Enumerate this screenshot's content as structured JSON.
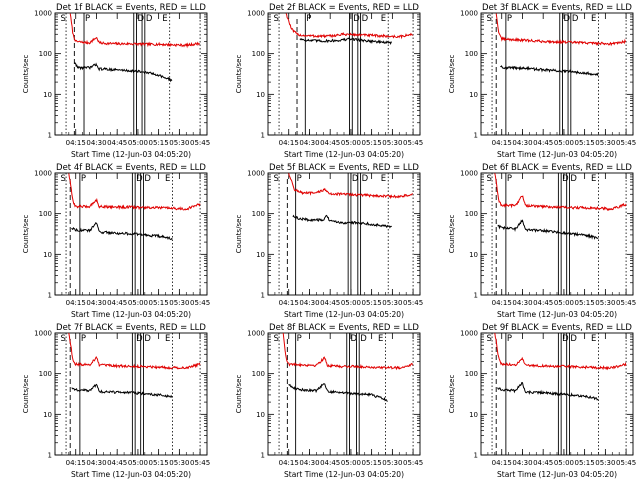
{
  "page": {
    "background": "#ffffff"
  },
  "colors": {
    "events": "#000000",
    "lld": "#e00000",
    "axes": "#000000"
  },
  "chart_data": {
    "type": "line",
    "layout": "3x3 grid",
    "shared": {
      "ylabel": "Counts/sec",
      "xlabel": "Start Time (12-Jun-03 04:05:20)",
      "yscale": "log",
      "ylim": [
        1,
        1000
      ],
      "ytick_labels": [
        "1",
        "10",
        "100",
        "1000"
      ],
      "xlim_minutes": [
        -5,
        105
      ],
      "xtick_minutes": [
        10,
        25,
        40,
        55,
        70,
        85,
        100
      ],
      "xtick_labels": [
        "04:15",
        "04:30",
        "04:45",
        "05:00",
        "05:15",
        "05:30",
        "05:45"
      ],
      "legend": "BLACK = Events, RED = LLD",
      "marker_labels": [
        "S",
        "P",
        "D",
        "E"
      ]
    },
    "panels": [
      {
        "title": "Det 1f BLACK = Events, RED = LLD",
        "markers": {
          "S_min": 3,
          "dashed_min": 9,
          "P_min": 16,
          "D_min": [
            52,
            54,
            58,
            60
          ],
          "E_min": 78
        },
        "series": [
          {
            "name": "LLD",
            "color": "#e00000",
            "start": 6,
            "end": 100,
            "x": [
              6,
              8,
              10,
              15,
              20,
              25,
              27,
              30,
              40,
              50,
              60,
              70,
              80,
              90,
              100
            ],
            "y": [
              1000,
              300,
              200,
              190,
              185,
              250,
              185,
              180,
              175,
              175,
              170,
              170,
              165,
              160,
              180
            ]
          },
          {
            "name": "Events",
            "color": "#000000",
            "start": 9,
            "end": 80,
            "x": [
              9,
              12,
              20,
              25,
              27,
              30,
              40,
              50,
              60,
              70,
              75,
              80
            ],
            "y": [
              60,
              45,
              45,
              55,
              42,
              42,
              40,
              38,
              35,
              30,
              25,
              22
            ]
          }
        ]
      },
      {
        "title": "Det 2f BLACK = Events, RED = LLD",
        "markers": {
          "S_min": 3,
          "dashed_min": 16,
          "P_min": 22,
          "D_min": [
            54,
            56,
            60,
            62
          ],
          "E_min": 82
        },
        "series": [
          {
            "name": "LLD",
            "color": "#e00000",
            "start": 8,
            "end": 100,
            "x": [
              8,
              12,
              16,
              20,
              30,
              40,
              50,
              60,
              70,
              80,
              90,
              100
            ],
            "y": [
              1000,
              400,
              300,
              280,
              270,
              270,
              300,
              290,
              280,
              270,
              260,
              300
            ]
          },
          {
            "name": "Events",
            "color": "#000000",
            "start": 18,
            "end": 85,
            "x": [
              18,
              25,
              35,
              45,
              55,
              60,
              65,
              75,
              85
            ],
            "y": [
              230,
              210,
              205,
              210,
              230,
              220,
              210,
              195,
              185
            ]
          }
        ]
      },
      {
        "title": "Det 3f BLACK = Events, RED = LLD",
        "markers": {
          "S_min": 3,
          "dashed_min": 6,
          "P_min": 13,
          "D_min": [
            52,
            54,
            58,
            60
          ],
          "E_min": 80
        },
        "series": [
          {
            "name": "LLD",
            "color": "#e00000",
            "start": 6,
            "end": 100,
            "x": [
              6,
              8,
              10,
              20,
              30,
              40,
              50,
              60,
              70,
              80,
              90,
              100
            ],
            "y": [
              1000,
              300,
              230,
              220,
              210,
              200,
              195,
              190,
              185,
              180,
              175,
              200
            ]
          },
          {
            "name": "Events",
            "color": "#000000",
            "start": 9,
            "end": 80,
            "x": [
              9,
              12,
              20,
              30,
              40,
              50,
              60,
              70,
              80
            ],
            "y": [
              50,
              45,
              45,
              43,
              40,
              38,
              36,
              34,
              30
            ]
          }
        ]
      },
      {
        "title": "Det 4f BLACK = Events, RED = LLD",
        "markers": {
          "S_min": 3,
          "dashed_min": 6,
          "P_min": 13,
          "D_min": [
            51,
            53,
            57,
            59
          ],
          "E_min": 80
        },
        "series": [
          {
            "name": "LLD",
            "color": "#e00000",
            "start": 5,
            "end": 100,
            "x": [
              5,
              8,
              10,
              20,
              25,
              27,
              30,
              40,
              50,
              60,
              70,
              80,
              90,
              100
            ],
            "y": [
              1000,
              200,
              150,
              150,
              220,
              150,
              150,
              145,
              145,
              140,
              140,
              135,
              130,
              170
            ]
          },
          {
            "name": "Events",
            "color": "#000000",
            "start": 7,
            "end": 80,
            "x": [
              7,
              10,
              20,
              25,
              27,
              30,
              40,
              50,
              60,
              70,
              80
            ],
            "y": [
              45,
              40,
              38,
              60,
              35,
              35,
              33,
              32,
              30,
              28,
              24
            ]
          }
        ]
      },
      {
        "title": "Det 5f BLACK = Events, RED = LLD",
        "markers": {
          "S_min": 3,
          "dashed_min": 9,
          "P_min": 15,
          "D_min": [
            53,
            55,
            60,
            62
          ],
          "E_min": 82
        },
        "series": [
          {
            "name": "LLD",
            "color": "#e00000",
            "start": 10,
            "end": 100,
            "x": [
              10,
              14,
              20,
              30,
              36,
              38,
              40,
              50,
              60,
              70,
              80,
              90,
              100
            ],
            "y": [
              1000,
              400,
              320,
              320,
              400,
              330,
              310,
              300,
              290,
              280,
              270,
              260,
              300
            ]
          },
          {
            "name": "Events",
            "color": "#000000",
            "start": 13,
            "end": 85,
            "x": [
              13,
              18,
              25,
              35,
              37,
              40,
              50,
              60,
              70,
              80,
              85
            ],
            "y": [
              85,
              75,
              70,
              70,
              90,
              65,
              60,
              60,
              55,
              50,
              45
            ]
          }
        ]
      },
      {
        "title": "Det 6f BLACK = Events, RED = LLD",
        "markers": {
          "S_min": 3,
          "dashed_min": 6,
          "P_min": 13,
          "D_min": [
            51,
            53,
            57,
            59
          ],
          "E_min": 80
        },
        "series": [
          {
            "name": "LLD",
            "color": "#e00000",
            "start": 5,
            "end": 100,
            "x": [
              5,
              8,
              10,
              20,
              25,
              27,
              30,
              40,
              50,
              60,
              70,
              80,
              90,
              100
            ],
            "y": [
              1000,
              200,
              160,
              160,
              280,
              160,
              155,
              150,
              145,
              140,
              140,
              135,
              130,
              170
            ]
          },
          {
            "name": "Events",
            "color": "#000000",
            "start": 7,
            "end": 80,
            "x": [
              7,
              10,
              20,
              25,
              27,
              30,
              40,
              50,
              60,
              70,
              80
            ],
            "y": [
              50,
              45,
              42,
              70,
              40,
              40,
              38,
              35,
              32,
              30,
              25
            ]
          }
        ]
      },
      {
        "title": "Det 7f BLACK = Events, RED = LLD",
        "markers": {
          "S_min": 3,
          "dashed_min": 6,
          "P_min": 13,
          "D_min": [
            51,
            53,
            57,
            59
          ],
          "E_min": 80
        },
        "series": [
          {
            "name": "LLD",
            "color": "#e00000",
            "start": 5,
            "end": 100,
            "x": [
              5,
              8,
              10,
              20,
              25,
              27,
              30,
              40,
              50,
              60,
              70,
              80,
              90,
              100
            ],
            "y": [
              1000,
              220,
              170,
              165,
              250,
              165,
              160,
              155,
              150,
              150,
              145,
              140,
              140,
              170
            ]
          },
          {
            "name": "Events",
            "color": "#000000",
            "start": 7,
            "end": 80,
            "x": [
              7,
              10,
              20,
              25,
              27,
              30,
              40,
              50,
              60,
              70,
              80
            ],
            "y": [
              45,
              40,
              38,
              55,
              36,
              36,
              35,
              34,
              32,
              30,
              27
            ]
          }
        ]
      },
      {
        "title": "Det 8f BLACK = Events, RED = LLD",
        "markers": {
          "S_min": 3,
          "dashed_min": 9,
          "P_min": 15,
          "D_min": [
            52,
            54,
            59,
            61
          ],
          "E_min": 80
        },
        "series": [
          {
            "name": "LLD",
            "color": "#e00000",
            "start": 6,
            "end": 100,
            "x": [
              6,
              8,
              10,
              20,
              30,
              36,
              38,
              40,
              50,
              60,
              70,
              80,
              90,
              100
            ],
            "y": [
              1000,
              250,
              170,
              165,
              160,
              250,
              160,
              155,
              150,
              150,
              145,
              140,
              140,
              170
            ]
          },
          {
            "name": "Events",
            "color": "#000000",
            "start": 10,
            "end": 82,
            "x": [
              10,
              13,
              20,
              30,
              36,
              38,
              40,
              50,
              60,
              70,
              82
            ],
            "y": [
              55,
              45,
              40,
              38,
              60,
              37,
              36,
              34,
              32,
              30,
              22
            ]
          }
        ]
      },
      {
        "title": "Det 9f BLACK = Events, RED = LLD",
        "markers": {
          "S_min": 3,
          "dashed_min": 6,
          "P_min": 13,
          "D_min": [
            51,
            53,
            57,
            59
          ],
          "E_min": 80
        },
        "series": [
          {
            "name": "LLD",
            "color": "#e00000",
            "start": 5,
            "end": 100,
            "x": [
              5,
              8,
              10,
              20,
              25,
              27,
              30,
              40,
              50,
              60,
              70,
              80,
              90,
              100
            ],
            "y": [
              1000,
              220,
              170,
              165,
              230,
              165,
              160,
              155,
              150,
              150,
              145,
              140,
              140,
              170
            ]
          },
          {
            "name": "Events",
            "color": "#000000",
            "start": 7,
            "end": 80,
            "x": [
              7,
              10,
              20,
              25,
              27,
              30,
              40,
              50,
              60,
              70,
              80
            ],
            "y": [
              45,
              40,
              38,
              60,
              35,
              35,
              34,
              32,
              30,
              28,
              24
            ]
          }
        ]
      }
    ]
  }
}
